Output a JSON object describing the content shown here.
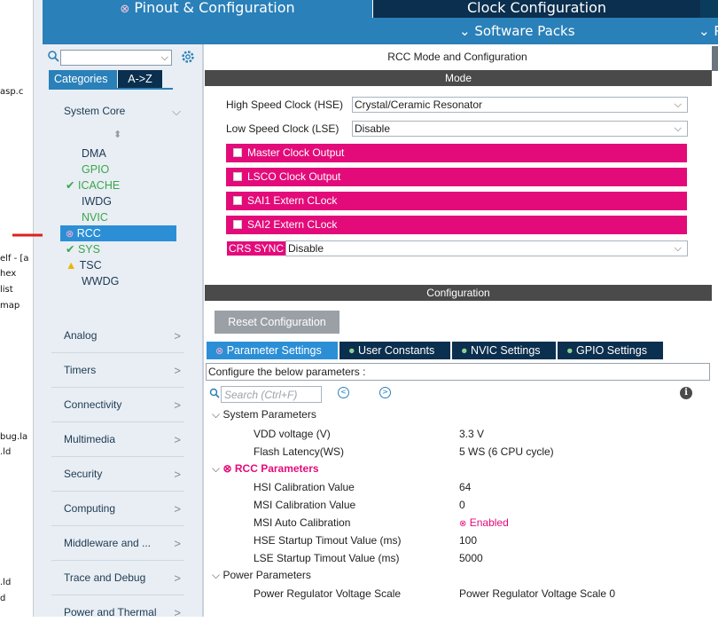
{
  "left_strip": [
    "asp.c",
    "elf - [a",
    "hex",
    "list",
    "map",
    "bug.la",
    ".ld",
    ".ld",
    "d"
  ],
  "tabs": {
    "pinout": "Pinout & Configuration",
    "clock": "Clock Configuration"
  },
  "subbar": {
    "software_packs": "Software Packs",
    "p_cut": "P"
  },
  "categories": {
    "tab_categories": "Categories",
    "tab_az": "A->Z",
    "system_core": "System Core",
    "system_core_items": [
      "DMA",
      "GPIO",
      "ICACHE",
      "IWDG",
      "NVIC",
      "RCC",
      "SYS",
      "TSC",
      "WWDG"
    ],
    "groups": [
      "Analog",
      "Timers",
      "Connectivity",
      "Multimedia",
      "Security",
      "Computing",
      "Middleware and ...",
      "Trace and Debug",
      "Power and Thermal"
    ]
  },
  "mode_panel": {
    "title": "RCC Mode and Configuration",
    "mode_header": "Mode",
    "hse_label": "High Speed Clock (HSE)",
    "hse_value": "Crystal/Ceramic Resonator",
    "lse_label": "Low Speed Clock (LSE)",
    "lse_value": "Disable",
    "checkboxes": [
      "Master Clock Output",
      "LSCO Clock Output",
      "SAI1 Extern CLock",
      "SAI2 Extern CLock"
    ],
    "crs_label": "CRS SYNC",
    "crs_value": "Disable"
  },
  "config_panel": {
    "header": "Configuration",
    "reset_button": "Reset Configuration",
    "tabs": [
      "Parameter Settings",
      "User Constants",
      "NVIC Settings",
      "GPIO Settings"
    ],
    "hint": "Configure the below parameters :",
    "search_placeholder": "Search (Ctrl+F)",
    "system_parameters": "System Parameters",
    "sys_rows": [
      {
        "label": "VDD voltage (V)",
        "value": "3.3 V"
      },
      {
        "label": "Flash Latency(WS)",
        "value": "5 WS (6 CPU cycle)"
      }
    ],
    "rcc_parameters": "RCC Parameters",
    "rcc_rows": [
      {
        "label": "HSI Calibration Value",
        "value": "64"
      },
      {
        "label": "MSI Calibration Value",
        "value": "0"
      },
      {
        "label": "MSI Auto Calibration",
        "value": "Enabled"
      },
      {
        "label": "HSE Startup Timout Value (ms)",
        "value": "100"
      },
      {
        "label": "LSE Startup Timout Value (ms)",
        "value": "5000"
      }
    ],
    "power_parameters": "Power Parameters",
    "power_rows": [
      {
        "label": "Power Regulator Voltage Scale",
        "value": "Power Regulator Voltage Scale 0"
      }
    ]
  },
  "colors": {
    "accent": "#2a80b9",
    "dark": "#0b2f4e",
    "pink": "#e30b7a",
    "selected": "#2c8fd6",
    "green": "#2ea043",
    "warning": "#e8b600"
  }
}
